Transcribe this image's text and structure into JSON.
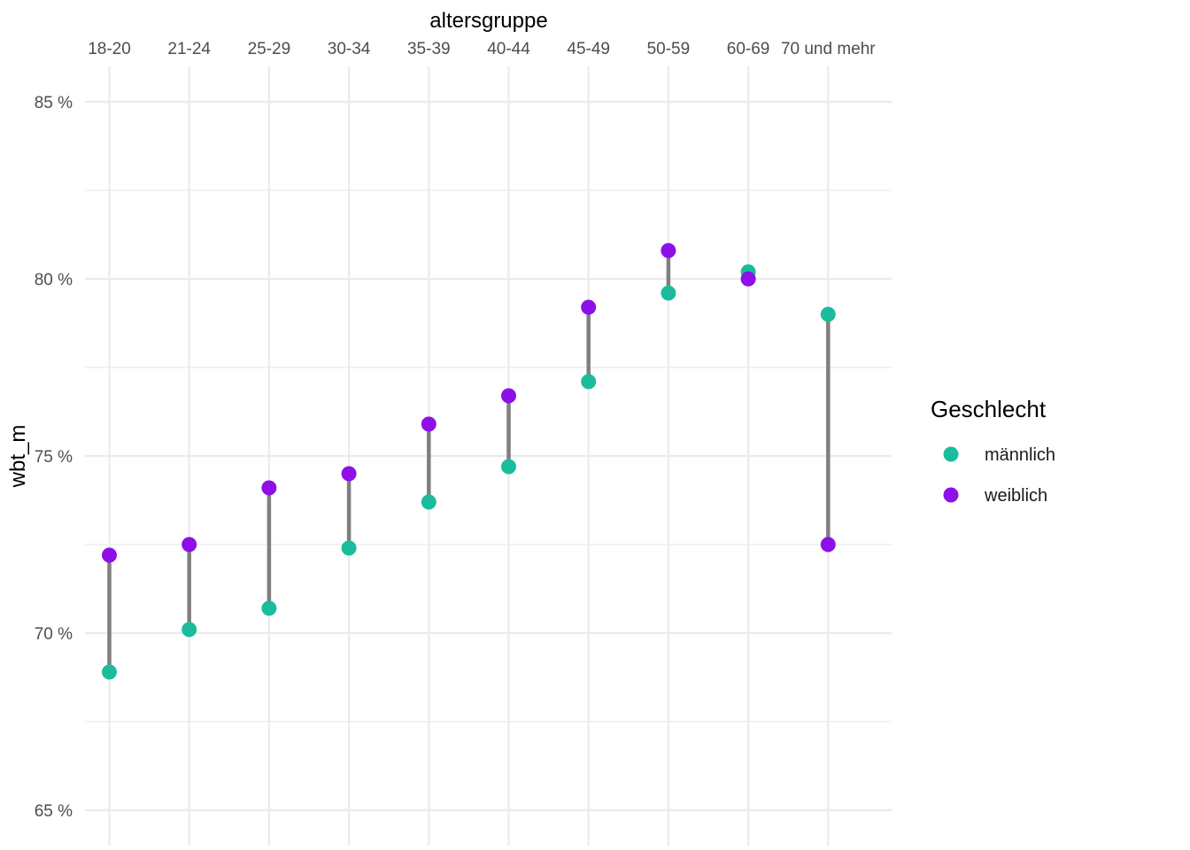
{
  "chart_data": {
    "type": "dumbbell",
    "xlabel": "altersgruppe",
    "ylabel": "wbt_m",
    "x_axis_position": "top",
    "categories": [
      "18-20",
      "21-24",
      "25-29",
      "30-34",
      "35-39",
      "40-44",
      "45-49",
      "50-59",
      "60-69",
      "70 und mehr"
    ],
    "ylim": [
      65,
      85
    ],
    "y_major_ticks": [
      65,
      70,
      75,
      80,
      85
    ],
    "y_tick_labels": [
      "65 %",
      "70 %",
      "75 %",
      "80 %",
      "85 %"
    ],
    "y_minor_ticks": [
      67.5,
      72.5,
      77.5,
      82.5
    ],
    "grid": true,
    "legend": {
      "title": "Geschlecht",
      "position": "right"
    },
    "series": [
      {
        "name": "männlich",
        "color": "#1ABC9C",
        "values": [
          68.9,
          70.1,
          70.7,
          72.4,
          73.7,
          74.7,
          77.1,
          79.6,
          80.2,
          79.0
        ]
      },
      {
        "name": "weiblich",
        "color": "#8E0FE7",
        "values": [
          72.2,
          72.5,
          74.1,
          74.5,
          75.9,
          76.7,
          79.2,
          80.8,
          80.0,
          72.5
        ]
      }
    ],
    "connector_color": "#7F7F7F"
  }
}
